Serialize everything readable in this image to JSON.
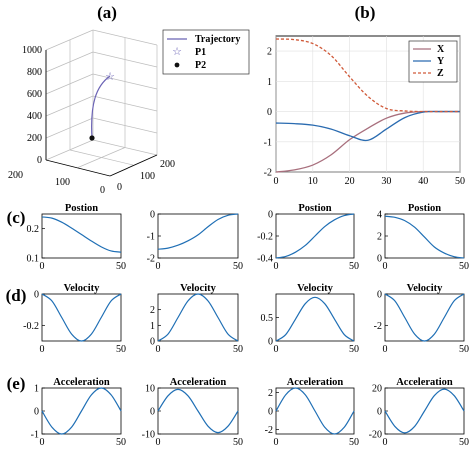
{
  "panels": {
    "a": "(a)",
    "b": "(b)",
    "c": "(c)",
    "d": "(d)",
    "e": "(e)"
  },
  "colors": {
    "trajectory": "#6b63b5",
    "x": "#a86f7d",
    "y": "#2a6bb0",
    "z": "#d05a3a",
    "small": "#1f6fb5"
  },
  "chart_data": [
    {
      "id": "a",
      "type": "line",
      "projection": "3d",
      "zlim": [
        0,
        1000
      ],
      "z_ticks": [
        "0",
        "200",
        "400",
        "600",
        "800",
        "1000"
      ],
      "x_ticks": [
        "200",
        "100",
        "0"
      ],
      "y_ticks": [
        "0",
        "100",
        "200"
      ],
      "legend": [
        {
          "name": "Trajectory",
          "marker": "line"
        },
        {
          "name": "P1",
          "marker": "pentagram"
        },
        {
          "name": "P2",
          "marker": "dot"
        }
      ],
      "legend_position": "top-right",
      "grid": true
    },
    {
      "id": "b",
      "type": "line",
      "xlim": [
        0,
        50
      ],
      "ylim": [
        -2,
        2.5
      ],
      "x_ticks": [
        "0",
        "10",
        "20",
        "30",
        "40",
        "50"
      ],
      "y_ticks": [
        "-2",
        "-1",
        "0",
        "1",
        "2"
      ],
      "x": [
        0,
        5,
        10,
        15,
        20,
        25,
        30,
        35,
        40,
        45,
        50
      ],
      "series": [
        {
          "name": "X",
          "values": [
            -2.0,
            -1.93,
            -1.77,
            -1.43,
            -0.93,
            -0.55,
            -0.22,
            -0.05,
            0.0,
            0.0,
            0.0
          ]
        },
        {
          "name": "Y",
          "values": [
            -0.38,
            -0.4,
            -0.45,
            -0.58,
            -0.8,
            -0.95,
            -0.58,
            -0.2,
            -0.02,
            0.0,
            0.0
          ]
        },
        {
          "name": "Z",
          "values": [
            2.4,
            2.38,
            2.25,
            1.85,
            1.15,
            0.5,
            0.1,
            0.02,
            0.0,
            0.0,
            0.0
          ]
        }
      ],
      "legend_position": "top-right",
      "grid": true
    },
    {
      "id": "c1",
      "type": "line",
      "title": "Postion",
      "xlim": [
        0,
        50
      ],
      "ylim": [
        0.1,
        0.25
      ],
      "x_ticks": [
        "0",
        "50"
      ],
      "y_ticks": [
        "0.1",
        "0.2"
      ],
      "x": [
        0,
        6.25,
        12.5,
        18.75,
        25,
        31.25,
        37.5,
        43.75,
        50
      ],
      "values": [
        0.24,
        0.236,
        0.222,
        0.202,
        0.18,
        0.158,
        0.138,
        0.124,
        0.12
      ]
    },
    {
      "id": "c2",
      "type": "line",
      "title": "",
      "xlim": [
        0,
        50
      ],
      "ylim": [
        -2,
        0
      ],
      "x_ticks": [
        "0",
        "50"
      ],
      "y_ticks": [
        "-2",
        "-1",
        "0"
      ],
      "x": [
        0,
        6.25,
        12.5,
        18.75,
        25,
        31.25,
        37.5,
        43.75,
        50
      ],
      "values": [
        -1.6,
        -1.55,
        -1.42,
        -1.22,
        -0.95,
        -0.58,
        -0.25,
        -0.06,
        0.0
      ]
    },
    {
      "id": "c3",
      "type": "line",
      "title": "Postion",
      "xlim": [
        0,
        50
      ],
      "ylim": [
        -0.4,
        0
      ],
      "x_ticks": [
        "0",
        "50"
      ],
      "y_ticks": [
        "-0.4",
        "-0.2",
        "0"
      ],
      "x": [
        0,
        6.25,
        12.5,
        18.75,
        25,
        31.25,
        37.5,
        43.75,
        50
      ],
      "values": [
        -0.4,
        -0.386,
        -0.347,
        -0.286,
        -0.2,
        -0.114,
        -0.053,
        -0.014,
        0.0
      ]
    },
    {
      "id": "c4",
      "type": "line",
      "title": "Postion",
      "xlim": [
        0,
        50
      ],
      "ylim": [
        0,
        4
      ],
      "x_ticks": [
        "0",
        "50"
      ],
      "y_ticks": [
        "0",
        "2",
        "4"
      ],
      "x": [
        0,
        6.25,
        12.5,
        18.75,
        25,
        31.25,
        37.5,
        43.75,
        50
      ],
      "values": [
        3.8,
        3.7,
        3.4,
        2.8,
        1.9,
        1.0,
        0.45,
        0.12,
        0.0
      ]
    },
    {
      "id": "d1",
      "type": "line",
      "title": "Velocity",
      "xlim": [
        0,
        50
      ],
      "ylim": [
        -0.3,
        0
      ],
      "x_ticks": [
        "0",
        "50"
      ],
      "y_ticks": [
        "-0.2",
        "0"
      ],
      "x": [
        0,
        6.25,
        12.5,
        18.75,
        25,
        31.25,
        37.5,
        43.75,
        50
      ],
      "values": [
        0.0,
        -0.044,
        -0.15,
        -0.256,
        -0.3,
        -0.256,
        -0.15,
        -0.044,
        0.0
      ]
    },
    {
      "id": "d2",
      "type": "line",
      "title": "Velocity",
      "xlim": [
        0,
        50
      ],
      "ylim": [
        0,
        3
      ],
      "x_ticks": [
        "0",
        "50"
      ],
      "y_ticks": [
        "0",
        "1",
        "2"
      ],
      "x": [
        0,
        6.25,
        12.5,
        18.75,
        25,
        31.25,
        37.5,
        43.75,
        50
      ],
      "values": [
        0.0,
        0.44,
        1.5,
        2.56,
        3.0,
        2.56,
        1.5,
        0.44,
        0.0
      ]
    },
    {
      "id": "d3",
      "type": "line",
      "title": "Velocity",
      "xlim": [
        0,
        50
      ],
      "ylim": [
        0,
        1
      ],
      "x_ticks": [
        "0",
        "50"
      ],
      "y_ticks": [
        "0",
        "0.5"
      ],
      "x": [
        0,
        6.25,
        12.5,
        18.75,
        25,
        31.25,
        37.5,
        43.75,
        50
      ],
      "values": [
        0.0,
        0.137,
        0.465,
        0.794,
        0.93,
        0.794,
        0.465,
        0.137,
        0.0
      ]
    },
    {
      "id": "d4",
      "type": "line",
      "title": "Velocity",
      "xlim": [
        0,
        50
      ],
      "ylim": [
        -3,
        0
      ],
      "x_ticks": [
        "0",
        "50"
      ],
      "y_ticks": [
        "-2",
        "0"
      ],
      "x": [
        0,
        6.25,
        12.5,
        18.75,
        25,
        31.25,
        37.5,
        43.75,
        50
      ],
      "values": [
        0.0,
        -0.44,
        -1.5,
        -2.56,
        -3.0,
        -2.56,
        -1.5,
        -0.44,
        0.0
      ]
    },
    {
      "id": "e1",
      "type": "line",
      "title": "Acceleration",
      "xlim": [
        0,
        50
      ],
      "ylim": [
        -1,
        1
      ],
      "x_ticks": [
        "0",
        "50"
      ],
      "y_ticks": [
        "-1",
        "0",
        "1"
      ],
      "x": [
        0,
        6.25,
        12.5,
        18.75,
        25,
        31.25,
        37.5,
        43.75,
        50
      ],
      "values": [
        0.0,
        -0.7,
        -1.0,
        -0.7,
        0.0,
        0.7,
        1.0,
        0.7,
        0.0
      ]
    },
    {
      "id": "e2",
      "type": "line",
      "title": "Acceleration",
      "xlim": [
        0,
        50
      ],
      "ylim": [
        -10,
        10
      ],
      "x_ticks": [
        "0",
        "50"
      ],
      "y_ticks": [
        "-10",
        "0",
        "10"
      ],
      "x": [
        0,
        6.25,
        12.5,
        18.75,
        25,
        31.25,
        37.5,
        43.75,
        50
      ],
      "values": [
        0.0,
        6.6,
        9.4,
        6.6,
        0.0,
        -6.6,
        -9.4,
        -6.6,
        0.0
      ]
    },
    {
      "id": "e3",
      "type": "line",
      "title": "Acceleration",
      "xlim": [
        0,
        50
      ],
      "ylim": [
        -2.5,
        2.5
      ],
      "x_ticks": [
        "0",
        "50"
      ],
      "y_ticks": [
        "-2",
        "0",
        "2"
      ],
      "x": [
        0,
        6.25,
        12.5,
        18.75,
        25,
        31.25,
        37.5,
        43.75,
        50
      ],
      "values": [
        0.0,
        1.77,
        2.5,
        1.77,
        0.0,
        -1.77,
        -2.5,
        -1.77,
        0.0
      ]
    },
    {
      "id": "e4",
      "type": "line",
      "title": "Acceleration",
      "xlim": [
        0,
        50
      ],
      "ylim": [
        -20,
        20
      ],
      "x_ticks": [
        "0",
        "50"
      ],
      "y_ticks": [
        "-20",
        "0",
        "20"
      ],
      "x": [
        0,
        6.25,
        12.5,
        18.75,
        25,
        31.25,
        37.5,
        43.75,
        50
      ],
      "values": [
        0.0,
        -13.4,
        -19.0,
        -13.4,
        0.0,
        13.4,
        19.0,
        13.4,
        0.0
      ]
    }
  ]
}
